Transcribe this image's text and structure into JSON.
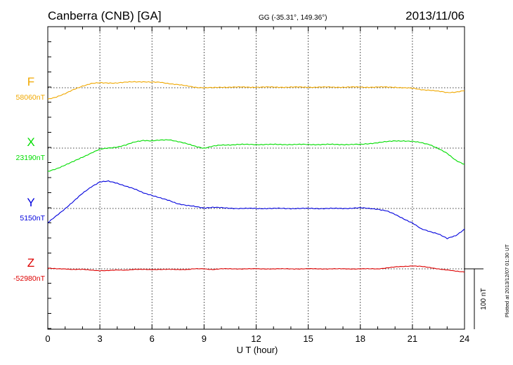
{
  "chart_data": {
    "type": "line",
    "title": "Canberra (CNB)  [GA]",
    "coords": "GG (-35.31°, 149.36°)",
    "date": "2013/11/06",
    "xlabel": "U T (hour)",
    "xlim": [
      0,
      24
    ],
    "x_ticks": [
      "0",
      "3",
      "6",
      "9",
      "12",
      "15",
      "18",
      "21",
      "24"
    ],
    "scale_label": "100 nT",
    "plotted_note": "Plotted at 2013/12/07 01:30 UT",
    "grid": true,
    "series": [
      {
        "name": "F",
        "baseline_label": "58060nT",
        "color": "#f0a800",
        "x": [
          0,
          0.5,
          1,
          1.5,
          2,
          2.5,
          3,
          3.5,
          4,
          4.5,
          5,
          5.5,
          6,
          6.5,
          7,
          7.5,
          8,
          8.5,
          9,
          9.5,
          10,
          11,
          12,
          13,
          14,
          15,
          16,
          17,
          18,
          19,
          20,
          20.5,
          21,
          21.5,
          22,
          22.5,
          23,
          23.5,
          24
        ],
        "values": [
          -19,
          -15,
          -10,
          -3,
          3,
          7,
          8,
          8,
          8,
          9,
          10,
          10,
          9,
          9,
          7,
          5,
          3,
          1,
          0,
          0,
          1,
          1,
          1,
          1,
          1,
          1,
          1,
          1,
          1,
          1,
          1,
          0,
          -1,
          -3,
          -4,
          -6,
          -8,
          -7,
          -5
        ]
      },
      {
        "name": "X",
        "baseline_label": "23190nT",
        "color": "#00dd00",
        "x": [
          0,
          0.5,
          1,
          1.5,
          2,
          2.5,
          3,
          3.5,
          4,
          4.5,
          5,
          5.5,
          6,
          6.5,
          7,
          7.5,
          8,
          8.5,
          9,
          9.5,
          10,
          11,
          12,
          13,
          14,
          15,
          16,
          17,
          18,
          19,
          20,
          20.5,
          21,
          21.5,
          22,
          22.5,
          23,
          23.5,
          24
        ],
        "values": [
          -39,
          -34,
          -28,
          -22,
          -15,
          -8,
          -2,
          0,
          2,
          5,
          10,
          13,
          12,
          13,
          14,
          11,
          7,
          3,
          0,
          3,
          5,
          6,
          6,
          6,
          6,
          6,
          6,
          6,
          6,
          9,
          12,
          12,
          11,
          9,
          6,
          -1,
          -9,
          -20,
          -27
        ]
      },
      {
        "name": "Y",
        "baseline_label": "5150nT",
        "color": "#0000dd",
        "x": [
          0,
          0.5,
          1,
          1.5,
          2,
          2.5,
          3,
          3.5,
          4,
          4.5,
          5,
          5.5,
          6,
          6.5,
          7,
          7.5,
          8,
          8.5,
          9,
          9.5,
          10,
          11,
          12,
          13,
          14,
          15,
          16,
          17,
          18,
          19,
          19.5,
          20,
          20.5,
          21,
          21.5,
          22,
          22.5,
          23,
          23.5,
          24
        ],
        "values": [
          -24,
          -12,
          0,
          12,
          25,
          36,
          44,
          45,
          42,
          37,
          32,
          26,
          22,
          17,
          13,
          8,
          5,
          3,
          1,
          2,
          1,
          0,
          0,
          0,
          0,
          0,
          0,
          0,
          1,
          -1,
          -4,
          -10,
          -17,
          -24,
          -34,
          -38,
          -42,
          -50,
          -45,
          -34
        ]
      },
      {
        "name": "Z",
        "baseline_label": "-52980nT",
        "color": "#dd0000",
        "x": [
          0,
          0.5,
          1,
          1.5,
          2,
          2.5,
          3,
          3.5,
          4,
          4.5,
          5,
          5.5,
          6,
          6.5,
          7,
          7.5,
          8,
          8.5,
          9,
          9.5,
          10,
          11,
          12,
          13,
          14,
          15,
          16,
          17,
          18,
          19,
          20,
          20.5,
          21,
          21.5,
          22,
          22.5,
          23,
          23.5,
          24
        ],
        "values": [
          1,
          0,
          0,
          -1,
          -1,
          -2,
          -3,
          -3,
          -2,
          -2,
          -1,
          -1,
          -1,
          -1,
          -1,
          -1,
          -1,
          0,
          0,
          -1,
          0,
          0,
          0,
          0,
          0,
          0,
          0,
          0,
          0,
          0,
          3,
          4,
          5,
          4,
          2,
          0,
          -2,
          -4,
          -5
        ]
      }
    ]
  }
}
